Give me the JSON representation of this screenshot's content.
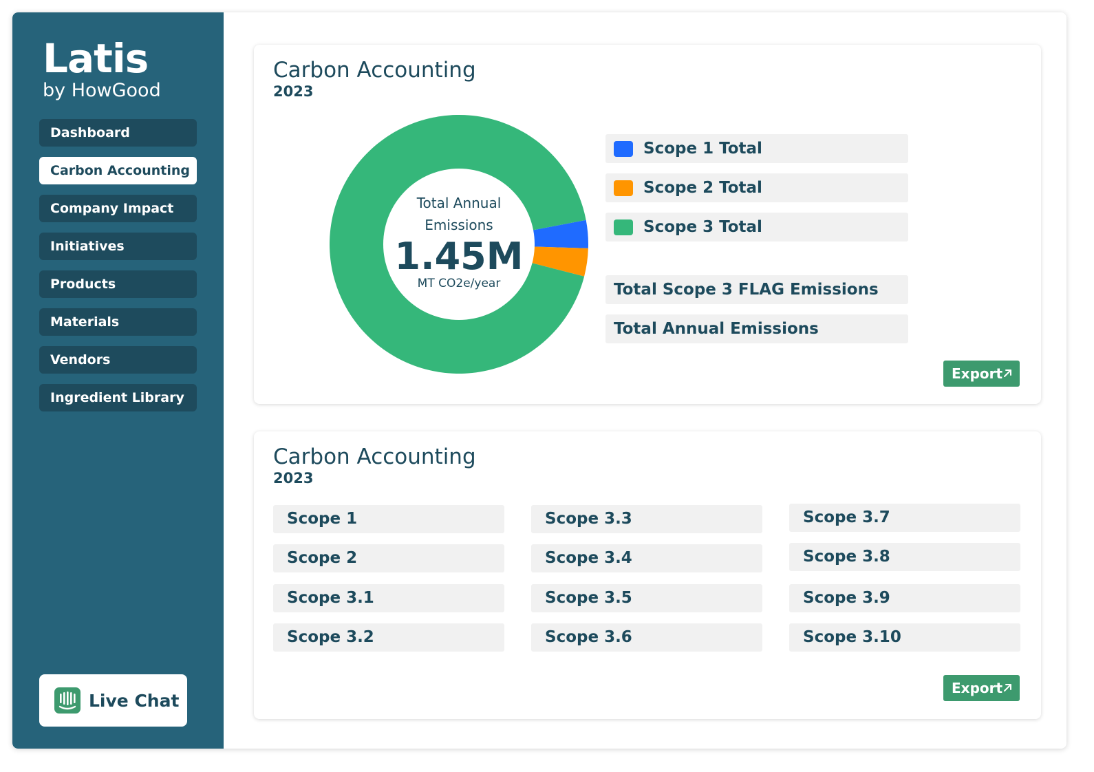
{
  "brand": {
    "name": "Latis",
    "sub": "by HowGood"
  },
  "nav": {
    "items": [
      {
        "label": "Dashboard"
      },
      {
        "label": "Carbon Accounting"
      },
      {
        "label": "Company Impact"
      },
      {
        "label": "Initiatives"
      },
      {
        "label": "Products"
      },
      {
        "label": "Materials"
      },
      {
        "label": "Vendors"
      },
      {
        "label": "Ingredient Library"
      }
    ],
    "active_index": 1
  },
  "livechat": {
    "label": "Live Chat",
    "icon": "chat-bars-icon",
    "icon_color": "#3d9a6e"
  },
  "summary_card": {
    "title": "Carbon Accounting",
    "year": "2023",
    "donut_center": {
      "line1": "Total Annual",
      "line2": "Emissions",
      "value": "1.45M",
      "unit": "MT CO2e/year"
    },
    "legend": [
      {
        "label": "Scope 1 Total",
        "color": "#1f6bff"
      },
      {
        "label": "Scope 2 Total",
        "color": "#ff9500"
      },
      {
        "label": "Scope 3 Total",
        "color": "#35b77a"
      }
    ],
    "totals": [
      {
        "label": "Total Scope 3 FLAG Emissions"
      },
      {
        "label": "Total Annual Emissions"
      }
    ],
    "export_label": "Export"
  },
  "chart_data": {
    "type": "pie",
    "categories": [
      "Scope 1 Total",
      "Scope 2 Total",
      "Scope 3 Total"
    ],
    "values": [
      3.5,
      3.5,
      93
    ],
    "unit": "percent share",
    "colors": [
      "#1f6bff",
      "#ff9500",
      "#35b77a"
    ],
    "donut": true,
    "legend": "right"
  },
  "detail_card": {
    "title": "Carbon Accounting",
    "year": "2023",
    "columns": [
      [
        "Scope 1",
        "Scope 2",
        "Scope 3.1",
        "Scope 3.2"
      ],
      [
        "Scope 3.3",
        "Scope 3.4",
        "Scope 3.5",
        "Scope 3.6"
      ],
      [
        "Scope 3.7",
        "Scope 3.8",
        "Scope 3.9",
        "Scope 3.10"
      ]
    ],
    "export_label": "Export"
  },
  "colors": {
    "sidebar": "#26637a",
    "nav_item": "#1e4b5d",
    "text_dark": "#1d4a5c",
    "export": "#3d9a6e",
    "donut_inner": "#ffffff"
  }
}
